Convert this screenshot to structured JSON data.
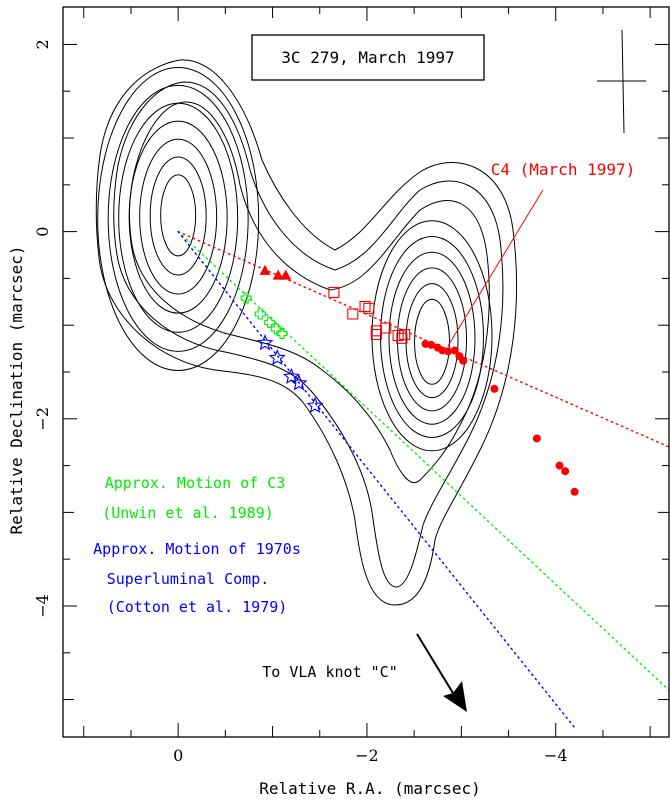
{
  "chart_data": {
    "type": "scatter",
    "title": "3C 279, March 1997",
    "xlabel": "Relative R.A. (marcsec)",
    "ylabel": "Relative Declination (marcsec)",
    "xlim": [
      1.22,
      -5.2
    ],
    "ylim": [
      -5.4,
      2.4
    ],
    "x_ticks": [
      0,
      -2,
      -4
    ],
    "y_ticks": [
      2,
      0,
      -2,
      -4
    ],
    "x_tick_labels": [
      "0",
      "−2",
      "−4"
    ],
    "y_tick_labels": [
      "2",
      "0",
      "−2",
      "−4"
    ],
    "grid": false,
    "contours": {
      "levels": 9,
      "core": {
        "x": 0.0,
        "y": 0.18
      },
      "components": [
        "core",
        "C4"
      ]
    },
    "series": [
      {
        "name": "C4 (March 1997)",
        "color": "#ff0000",
        "marker": "circle",
        "points": [
          [
            -2.62,
            -1.2
          ],
          [
            -2.68,
            -1.21
          ],
          [
            -2.75,
            -1.24
          ],
          [
            -2.8,
            -1.27
          ],
          [
            -2.86,
            -1.28
          ],
          [
            -2.93,
            -1.27
          ],
          [
            -2.98,
            -1.33
          ],
          [
            -3.02,
            -1.38
          ],
          [
            -3.35,
            -1.68
          ],
          [
            -3.8,
            -2.21
          ],
          [
            -4.04,
            -2.5
          ],
          [
            -4.1,
            -2.56
          ],
          [
            -4.2,
            -2.78
          ]
        ]
      },
      {
        "name": "",
        "color": "#ff0000",
        "marker": "triangle",
        "points": [
          [
            -0.92,
            -0.42
          ],
          [
            -1.06,
            -0.47
          ],
          [
            -1.14,
            -0.47
          ]
        ]
      },
      {
        "name": "",
        "color": "#ff0000",
        "marker": "open-square",
        "points": [
          [
            -1.65,
            -0.65
          ],
          [
            -1.85,
            -0.88
          ],
          [
            -1.98,
            -0.8
          ],
          [
            -2.02,
            -0.82
          ],
          [
            -2.1,
            -1.06
          ],
          [
            -2.1,
            -1.1
          ],
          [
            -2.2,
            -1.03
          ],
          [
            -2.33,
            -1.11
          ],
          [
            -2.37,
            -1.14
          ],
          [
            -2.4,
            -1.1
          ]
        ]
      },
      {
        "name": "Approx. Motion of C3 (Unwin et al. 1989)",
        "color": "#00ee00",
        "marker": "open-cross",
        "points": [
          [
            -0.72,
            -0.71
          ],
          [
            -0.87,
            -0.88
          ],
          [
            -0.97,
            -0.97
          ],
          [
            -1.04,
            -1.04
          ],
          [
            -1.1,
            -1.09
          ]
        ]
      },
      {
        "name": "Approx. Motion of 1970s Superluminal Comp. (Cotton et al. 1979)",
        "color": "#0000ff",
        "marker": "open-star",
        "points": [
          [
            -0.92,
            -1.19
          ],
          [
            -1.05,
            -1.35
          ],
          [
            -1.2,
            -1.55
          ],
          [
            -1.28,
            -1.62
          ],
          [
            -1.45,
            -1.86
          ]
        ]
      }
    ],
    "trend_lines": [
      {
        "color": "#ff0000",
        "from": [
          0.0,
          0.0
        ],
        "to": [
          -5.2,
          -2.3
        ]
      },
      {
        "color": "#00ee00",
        "from": [
          0.0,
          0.0
        ],
        "to": [
          -5.2,
          -4.9
        ]
      },
      {
        "color": "#0000ff",
        "from": [
          0.0,
          0.0
        ],
        "to": [
          -4.2,
          -5.3
        ]
      }
    ],
    "annotations": {
      "c4_label": "C4 (March 1997)",
      "c3_line1": "Approx. Motion of C3",
      "c3_line2": "(Unwin et al. 1989)",
      "superluminal_line1": "Approx. Motion of 1970s",
      "superluminal_line2": "Superluminal Comp.",
      "superluminal_line3": "(Cotton et al. 1979)",
      "vla_label": "To VLA knot \"C\""
    }
  }
}
